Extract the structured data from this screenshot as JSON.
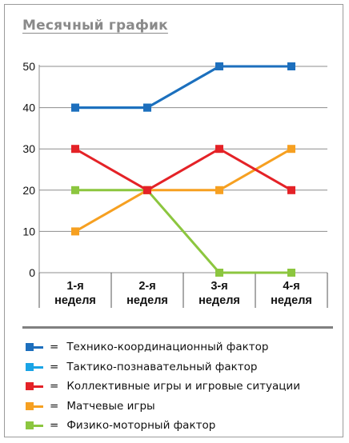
{
  "title": "Месячный график",
  "chart_data": {
    "type": "line",
    "categories": [
      [
        "1-я",
        "неделя"
      ],
      [
        "2-я",
        "неделя"
      ],
      [
        "3-я",
        "неделя"
      ],
      [
        "4-я",
        "неделя"
      ]
    ],
    "ylim": [
      0,
      50
    ],
    "yticks": [
      "0",
      "10",
      "20",
      "30",
      "40",
      "50"
    ],
    "grid": true,
    "series": [
      {
        "name": "Технико-координационный фактор",
        "color": "#1d6fbd",
        "values": [
          40,
          40,
          50,
          50
        ]
      },
      {
        "name": "Тактико-познавательный фактор",
        "color": "#1aa4e6",
        "values": [
          40,
          40,
          50,
          50
        ]
      },
      {
        "name": "Коллективные игры и игровые ситуации",
        "color": "#e42227",
        "values": [
          30,
          20,
          30,
          20
        ]
      },
      {
        "name": "Матчевые игры",
        "color": "#f6a021",
        "values": [
          10,
          20,
          20,
          30
        ]
      },
      {
        "name": "Физико-моторный фактор",
        "color": "#8cc63f",
        "values": [
          20,
          20,
          0,
          0
        ]
      }
    ]
  },
  "legend": {
    "equals": "="
  }
}
